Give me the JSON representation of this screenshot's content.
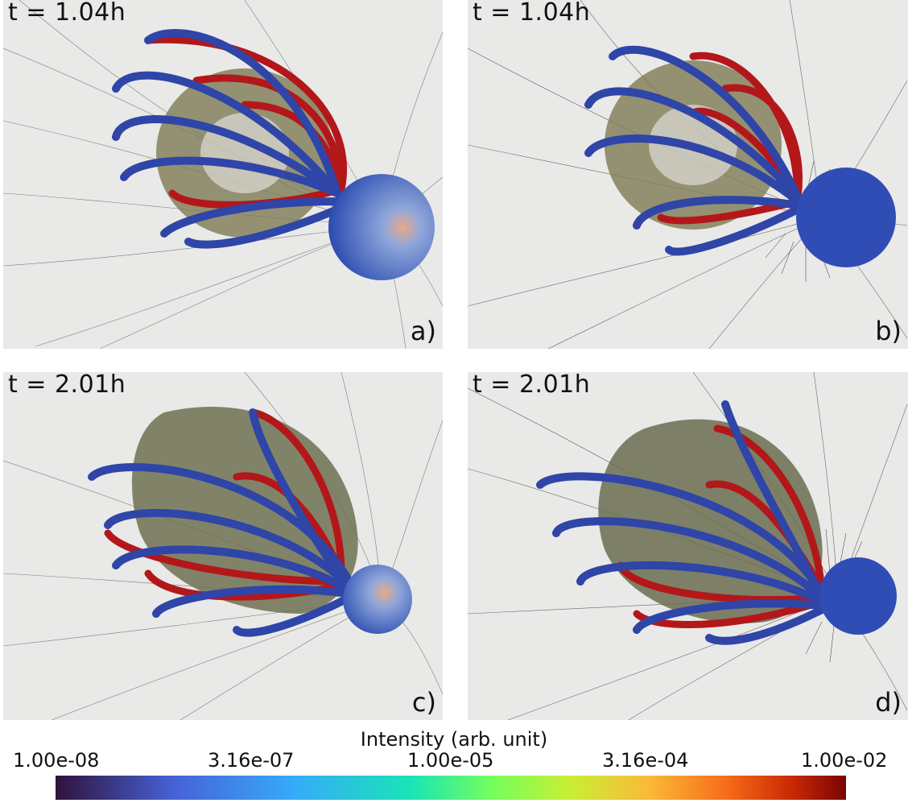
{
  "panels": [
    {
      "id": "a",
      "time": "t = 1.04h",
      "letter": "a)"
    },
    {
      "id": "b",
      "time": "t = 1.04h",
      "letter": "b)"
    },
    {
      "id": "c",
      "time": "t = 2.01h",
      "letter": "c)"
    },
    {
      "id": "d",
      "time": "t = 2.01h",
      "letter": "d)"
    }
  ],
  "colorbar": {
    "title": "Intensity (arb. unit)",
    "ticks": [
      "1.00e-08",
      "3.16e-07",
      "1.00e-05",
      "3.16e-04",
      "1.00e-02"
    ],
    "colormap": "turbo"
  },
  "colors": {
    "background": "#e9e9e8",
    "blue_tube": "#2f45a8",
    "red_tube": "#b3171a",
    "sphere": "#3b5fc6",
    "torus": "#7d7a52",
    "field_line": "#000000"
  }
}
